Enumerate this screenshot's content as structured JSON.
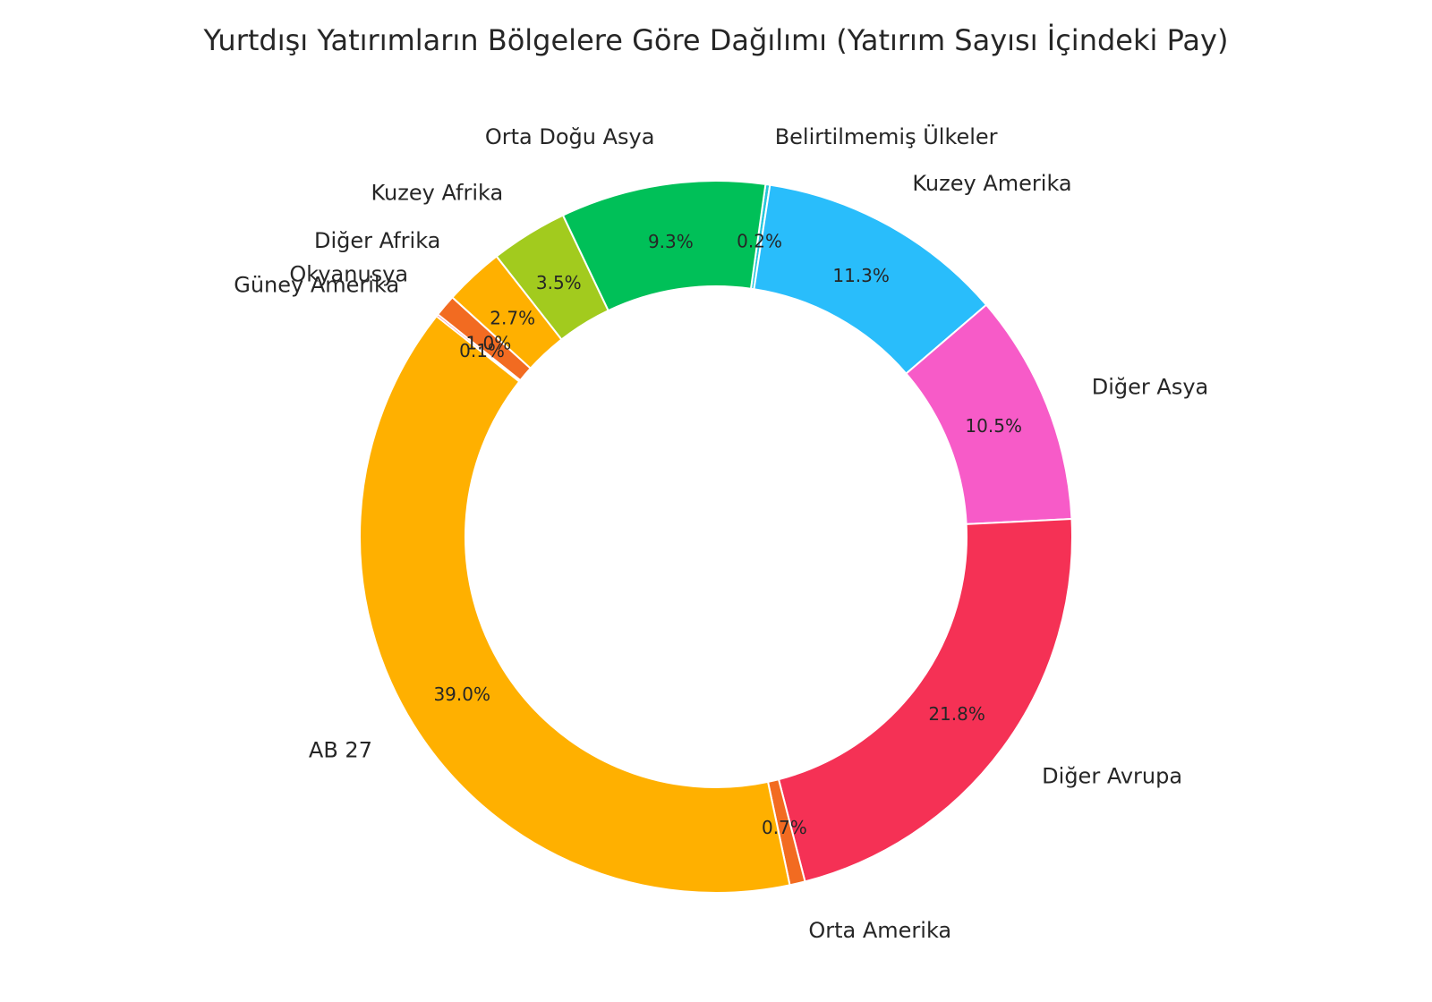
{
  "chart_data": {
    "type": "pie",
    "donut": true,
    "title": "Yurtdışı Yatırımların Bölgelere Göre Dağılımı (Yatırım Sayısı İçindeki Pay)",
    "legend": "none",
    "slices": [
      {
        "label": "Belirtilmemiş Ülkeler",
        "value": 0.2,
        "display": "0.2%",
        "color": "#26c6da"
      },
      {
        "label": "Kuzey Amerika",
        "value": 11.3,
        "display": "11.3%",
        "color": "#29bdfb"
      },
      {
        "label": "Diğer Asya",
        "value": 10.5,
        "display": "10.5%",
        "color": "#f75bc8"
      },
      {
        "label": "Diğer Avrupa",
        "value": 21.8,
        "display": "21.8%",
        "color": "#f53155"
      },
      {
        "label": "Orta Amerika",
        "value": 0.7,
        "display": "0.7%",
        "color": "#f26b21"
      },
      {
        "label": "AB 27",
        "value": 39.0,
        "display": "39.0%",
        "color": "#ffb000"
      },
      {
        "label": "Güney Amerika",
        "value": 0.1,
        "display": "0.1%",
        "color": "#f53155"
      },
      {
        "label": "Okyanusya",
        "value": 1.0,
        "display": "1.0%",
        "color": "#f26b21"
      },
      {
        "label": "Diğer Afrika",
        "value": 2.7,
        "display": "2.7%",
        "color": "#ffb000"
      },
      {
        "label": "Kuzey Afrika",
        "value": 3.5,
        "display": "3.5%",
        "color": "#a2cb1e"
      },
      {
        "label": "Orta Doğu Asya",
        "value": 9.3,
        "display": "9.3%",
        "color": "#00c058"
      }
    ]
  }
}
